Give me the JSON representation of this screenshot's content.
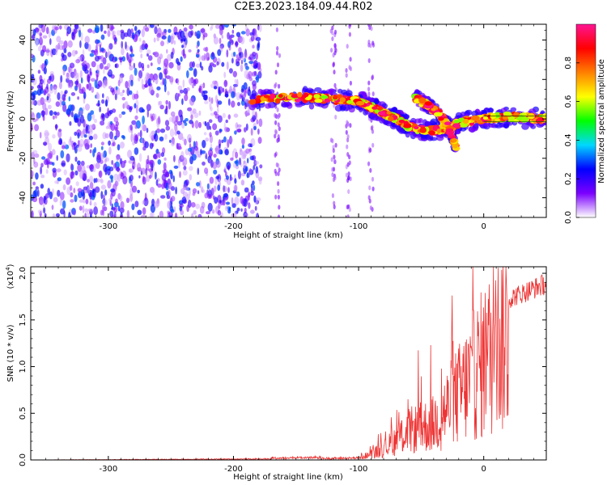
{
  "title": "C2E3.2023.184.09.44.R02",
  "chart_data": [
    {
      "type": "heatmap",
      "name": "spectrogram",
      "xlabel": "Height of straight line (km)",
      "ylabel": "Frequency (Hz)",
      "xlim": [
        -362,
        50
      ],
      "ylim": [
        -50,
        48
      ],
      "xticks": [
        -300,
        -200,
        -100,
        0
      ],
      "yticks": [
        -40,
        -20,
        0,
        20,
        40
      ],
      "colorbar": {
        "label": "Normalized spectral amplitude",
        "range": [
          0,
          1
        ],
        "ticks": [
          0.0,
          0.2,
          0.4,
          0.6,
          0.8
        ],
        "colormap": [
          "#ffffff",
          "#7b00ff",
          "#0000ff",
          "#00d8ff",
          "#00ff00",
          "#ffff00",
          "#ff8000",
          "#ff0000",
          "#ff1493"
        ]
      },
      "features": [
        {
          "description": "diffuse noise",
          "x_range": [
            -362,
            -178
          ],
          "amplitude": 0.3
        },
        {
          "description": "ridge",
          "x": [
            -185,
            -150,
            -120,
            -100,
            -90,
            -80,
            -70,
            -60,
            -45,
            -30,
            -20,
            0,
            20,
            50
          ],
          "y": [
            10,
            11,
            10,
            9,
            6,
            3,
            0,
            -4,
            -6,
            -5,
            -2,
            0,
            1,
            0
          ]
        },
        {
          "description": "descending branch",
          "x": [
            -55,
            -45,
            -35,
            -28,
            -22
          ],
          "y": [
            11,
            7,
            2,
            -4,
            -15
          ]
        }
      ]
    },
    {
      "type": "line",
      "name": "snr",
      "xlabel": "Height of straight line (km)",
      "ylabel": "SNR (10 * v/v)",
      "yscale_label": "(x10",
      "yscale_exp": "4",
      "yscale_close": ")",
      "xlim": [
        -362,
        50
      ],
      "ylim": [
        0,
        2.07
      ],
      "xticks": [
        -300,
        -200,
        -100,
        0
      ],
      "yticks": [
        "0.0",
        "0.5",
        "1.0",
        "1.5",
        "2.0"
      ],
      "color": "#ee3333",
      "envelope_x": [
        -362,
        -180,
        -100,
        -80,
        -60,
        -40,
        -20,
        0,
        20,
        50
      ],
      "envelope_y": [
        0.0,
        0.01,
        0.02,
        0.15,
        0.4,
        0.5,
        0.9,
        1.35,
        1.8,
        1.97
      ]
    }
  ]
}
